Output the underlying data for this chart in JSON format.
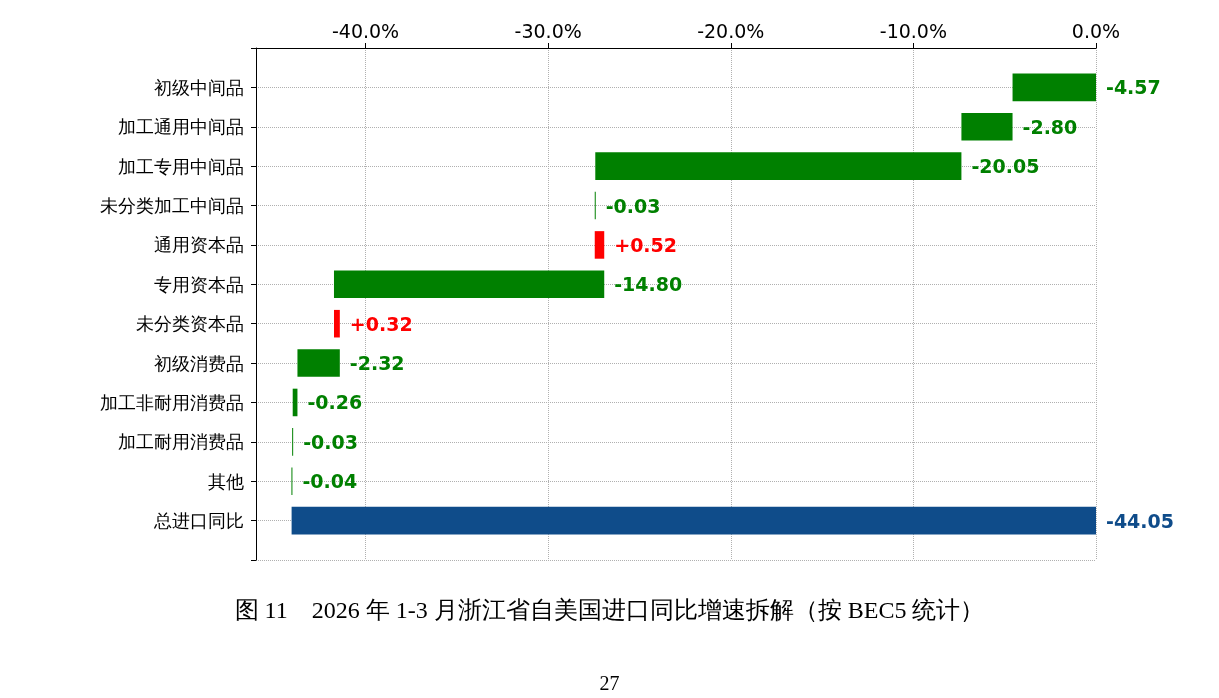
{
  "chart_data": {
    "type": "bar",
    "orientation": "horizontal",
    "categories": [
      "初级中间品",
      "加工通用中间品",
      "加工专用中间品",
      "未分类加工中间品",
      "通用资本品",
      "专用资本品",
      "未分类资本品",
      "初级消费品",
      "加工非耐用消费品",
      "加工耐用消费品",
      "其他",
      "总进口同比"
    ],
    "values": [
      -4.57,
      -2.8,
      -20.05,
      -0.03,
      0.52,
      -14.8,
      0.32,
      -2.32,
      -0.26,
      -0.03,
      -0.04,
      -44.05
    ],
    "base": [
      0,
      -4.57,
      -7.37,
      -27.42,
      -27.45,
      -26.93,
      -41.73,
      -41.41,
      -43.73,
      -43.99,
      -44.02,
      0
    ],
    "colors": [
      "#008000",
      "#008000",
      "#008000",
      "#008000",
      "#ff0000",
      "#008000",
      "#ff0000",
      "#008000",
      "#008000",
      "#008000",
      "#008000",
      "#0f4c8a"
    ],
    "value_labels": [
      "-4.57",
      "-2.80",
      "-20.05",
      "-0.03",
      "+0.52",
      "-14.80",
      "+0.32",
      "-2.32",
      "-0.26",
      "-0.03",
      "-0.04",
      "-44.05"
    ],
    "xlim": [
      -46,
      0
    ],
    "xticks": [
      {
        "value": -40,
        "label": "-40.0%"
      },
      {
        "value": -30,
        "label": "-30.0%"
      },
      {
        "value": -20,
        "label": "-20.0%"
      },
      {
        "value": -10,
        "label": "-10.0%"
      },
      {
        "value": 0,
        "label": "0.0%"
      }
    ],
    "grid": true,
    "annotations": [
      "图 11　2026 年 1-3 月浙江省自美国进口同比增速拆解（按 BEC5 统计）",
      "27"
    ]
  }
}
